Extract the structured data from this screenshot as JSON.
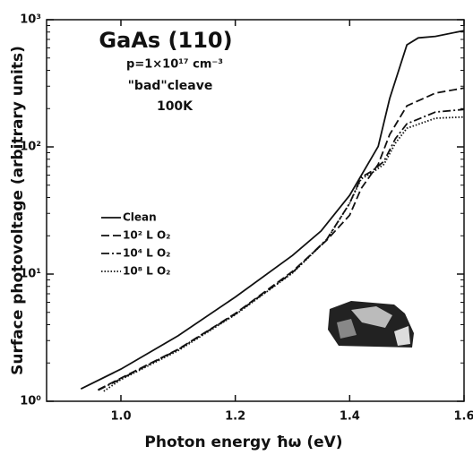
{
  "chart_data": {
    "type": "line",
    "xlabel": "Photon energy ħω  (eV)",
    "ylabel": "Surface photovoltage  (arbitrary units)",
    "annotations": [
      "GaAs (110)",
      "p=1×10¹⁷ cm⁻³",
      "\"bad\"cleave",
      "100K"
    ],
    "xlim": [
      0.87,
      1.6
    ],
    "xticks": [
      {
        "value": 1.0,
        "label": "1.0"
      },
      1.2,
      1.4,
      1.6
    ],
    "ylim": [
      1,
      1000
    ],
    "log_y": true,
    "yticks": [
      {
        "value": 1,
        "label": "10⁰"
      },
      {
        "value": 10,
        "label": "10¹"
      },
      {
        "value": 100,
        "label": "10²"
      },
      {
        "value": 1000,
        "label": "10³"
      }
    ],
    "legend": "upper left",
    "series": [
      {
        "name": "Clean",
        "color": "#111111",
        "style": "solid",
        "x": [
          0.93,
          1.0,
          1.1,
          1.2,
          1.3,
          1.35,
          1.4,
          1.45,
          1.47,
          1.5,
          1.52,
          1.55,
          1.6
        ],
        "values": [
          1.25,
          1.79,
          3.27,
          6.6,
          14,
          21.8,
          41.6,
          101,
          240,
          634,
          720,
          740,
          820
        ]
      },
      {
        "name": "10² L O₂",
        "color": "#111111",
        "style": "dashed",
        "x": [
          0.96,
          1.0,
          1.1,
          1.2,
          1.3,
          1.36,
          1.4,
          1.42,
          1.45,
          1.47,
          1.5,
          1.55,
          1.6
        ],
        "values": [
          1.23,
          1.52,
          2.56,
          4.9,
          10.5,
          18.5,
          29,
          47,
          73,
          125,
          210,
          265,
          290
        ]
      },
      {
        "name": "10⁴ L O₂",
        "color": "#111111",
        "style": "dashdot",
        "x": [
          0.96,
          1.0,
          1.1,
          1.2,
          1.3,
          1.36,
          1.4,
          1.42,
          1.44,
          1.46,
          1.48,
          1.5,
          1.55,
          1.6
        ],
        "values": [
          1.22,
          1.5,
          2.55,
          4.85,
          10.3,
          18.8,
          36,
          57.6,
          65,
          77,
          116,
          152,
          188,
          197
        ]
      },
      {
        "name": "10⁸ L O₂",
        "color": "#111111",
        "style": "dotted",
        "x": [
          0.97,
          1.0,
          1.1,
          1.2,
          1.3,
          1.36,
          1.4,
          1.42,
          1.44,
          1.46,
          1.48,
          1.5,
          1.55,
          1.6
        ],
        "values": [
          1.2,
          1.48,
          2.5,
          4.8,
          10.2,
          18.6,
          36,
          56,
          63,
          73,
          107,
          140,
          168,
          172
        ]
      }
    ]
  }
}
